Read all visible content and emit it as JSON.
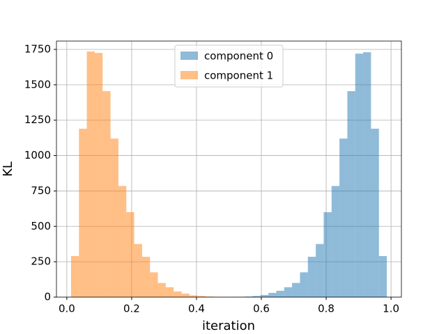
{
  "chart_data": {
    "type": "histogram",
    "xlabel": "iteration",
    "ylabel": "KL",
    "bins": [
      0.013,
      0.0374,
      0.0617,
      0.0861,
      0.1104,
      0.1348,
      0.1591,
      0.1835,
      0.2078,
      0.2322,
      0.2565,
      0.2809,
      0.3052,
      0.3296,
      0.3539,
      0.3783,
      0.4026,
      0.427,
      0.4513,
      0.4757,
      0.5,
      0.5244,
      0.5487,
      0.5731,
      0.5974,
      0.6218,
      0.6461,
      0.6705,
      0.6948,
      0.7192,
      0.7435,
      0.7679,
      0.7922,
      0.8166,
      0.8409,
      0.8653,
      0.8896,
      0.914,
      0.9383,
      0.9627,
      0.987
    ],
    "series": [
      {
        "name": "component 0",
        "color": "#1f77b4",
        "values": [
          0,
          0,
          0,
          0,
          0,
          0,
          0,
          0,
          0,
          0,
          0,
          0,
          0,
          0,
          0,
          0,
          0,
          0,
          0,
          0,
          1,
          2,
          4,
          8,
          15,
          30,
          45,
          70,
          100,
          175,
          285,
          375,
          600,
          785,
          1120,
          1455,
          1720,
          1730,
          1190,
          290
        ]
      },
      {
        "name": "component 1",
        "color": "#ff7f0e",
        "values": [
          290,
          1190,
          1735,
          1725,
          1455,
          1120,
          785,
          600,
          375,
          285,
          175,
          100,
          70,
          40,
          25,
          12,
          8,
          4,
          2,
          1,
          0,
          0,
          0,
          0,
          0,
          0,
          0,
          0,
          0,
          0,
          0,
          0,
          0,
          0,
          0,
          0,
          0,
          0,
          0,
          0
        ]
      }
    ],
    "opacity": 0.5,
    "xlim": [
      -0.032,
      1.032
    ],
    "ylim": [
      0,
      1809
    ],
    "xticks": [
      {
        "value": 0,
        "label": "0.0"
      },
      0.2,
      0.4,
      0.6,
      0.8,
      {
        "value": 1,
        "label": "1.0"
      }
    ],
    "yticks": [
      0,
      250,
      500,
      750,
      1000,
      1250,
      1500,
      1750
    ],
    "grid": true,
    "legend": "upper center"
  }
}
